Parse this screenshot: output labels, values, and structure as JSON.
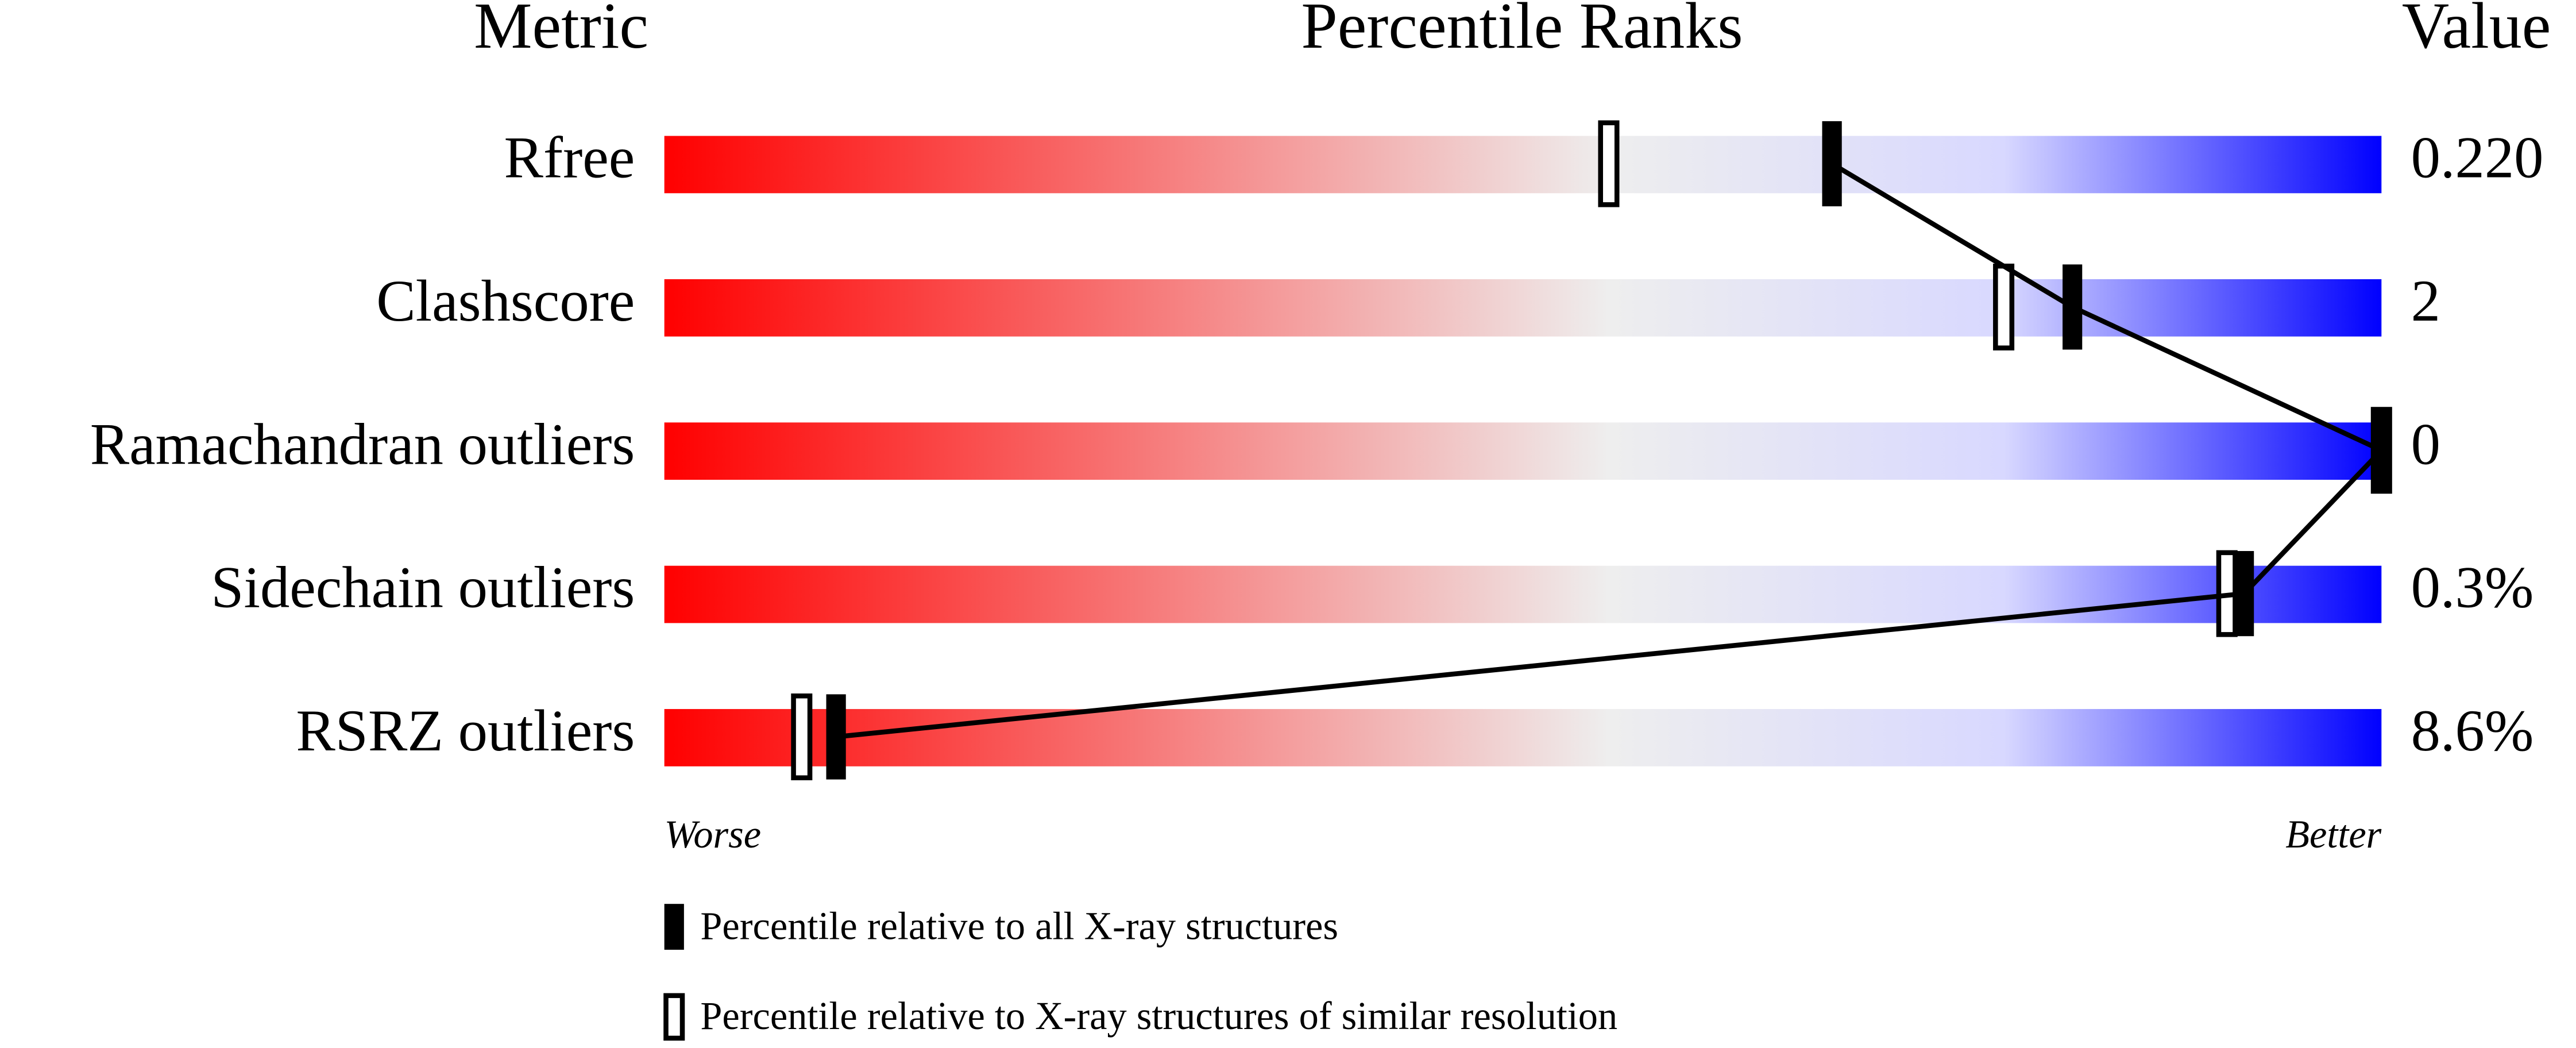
{
  "chart_data": {
    "type": "percentile",
    "title": "Percentile Ranks",
    "category_header": "Metric",
    "value_header": "Value",
    "categories": [
      "Rfree",
      "Clashscore",
      "Ramachandran outliers",
      "Sidechain outliers",
      "RSRZ outliers"
    ],
    "metric_values": [
      "0.220",
      "2",
      "0",
      "0.3%",
      "8.6%"
    ],
    "xlim": [
      0,
      100
    ],
    "low_label": "Worse",
    "high_label": "Better",
    "gradient_colors": [
      "#ff0000",
      "#eeeeee",
      "#d8d8ff",
      "#0000ff"
    ],
    "series": [
      {
        "name": "Percentile relative to all X-ray structures",
        "style": "filled",
        "color": "#000000",
        "values": [
          68,
          82,
          100,
          92,
          10
        ]
      },
      {
        "name": "Percentile relative to X-ray structures of similar resolution",
        "style": "open",
        "color": "#000000",
        "values": [
          55,
          78,
          100,
          91,
          8
        ]
      }
    ]
  }
}
